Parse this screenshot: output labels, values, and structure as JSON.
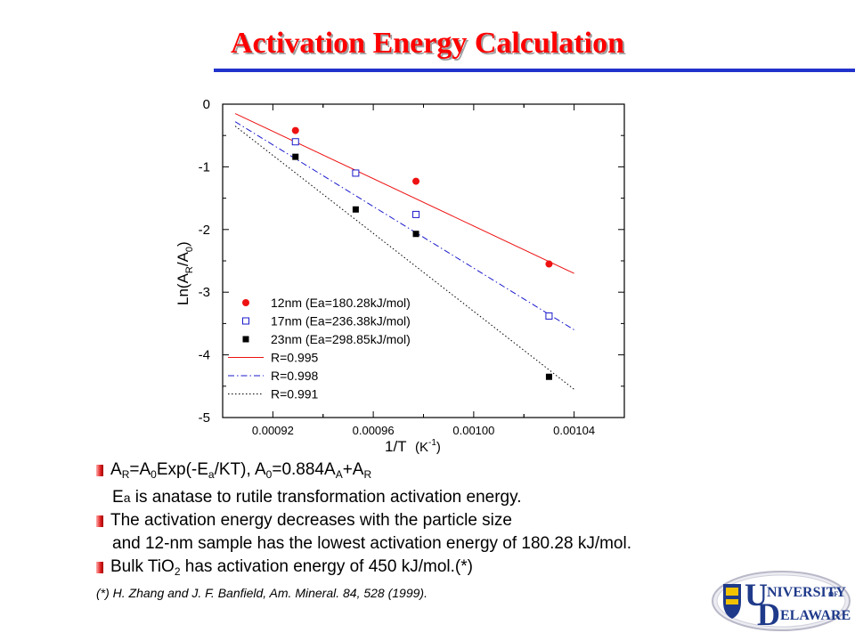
{
  "title": "Activation Energy Calculation",
  "chart_data": {
    "type": "scatter",
    "xlabel_main": "1/T",
    "xlabel_unit_open": "(K",
    "xlabel_unit_exp": "-1",
    "xlabel_unit_close": ")",
    "ylabel_parts": [
      "Ln(A",
      "R",
      "/A",
      "0",
      ")"
    ],
    "xlim": [
      0.0009,
      0.00106
    ],
    "ylim": [
      -5,
      0
    ],
    "x_ticks": [
      0.00092,
      0.00096,
      0.001,
      0.00104
    ],
    "x_tick_labels": [
      "0.00092",
      "0.00096",
      "0.00100",
      "0.00104"
    ],
    "y_ticks": [
      0,
      -1,
      -2,
      -3,
      -4,
      -5
    ],
    "y_tick_labels": [
      "0",
      "-1",
      "-2",
      "-3",
      "-4",
      "-5"
    ],
    "series": [
      {
        "name": "12nm (Ea=180.28kJ/mol)",
        "marker": "filled-circle",
        "color": "#ee1111",
        "x": [
          0.000929,
          0.000977,
          0.00103
        ],
        "y": [
          -0.42,
          -1.23,
          -2.55
        ],
        "fit": {
          "x": [
            0.000905,
            0.00104
          ],
          "y": [
            -0.15,
            -2.7
          ],
          "style": "solid",
          "label": "R=0.995"
        }
      },
      {
        "name": "17nm (Ea=236.38kJ/mol)",
        "marker": "open-square",
        "color": "#1a1acc",
        "x": [
          0.000929,
          0.000953,
          0.000977,
          0.00103
        ],
        "y": [
          -0.6,
          -1.1,
          -1.76,
          -3.38
        ],
        "fit": {
          "x": [
            0.000905,
            0.00104
          ],
          "y": [
            -0.28,
            -3.6
          ],
          "style": "dashdot",
          "label": "R=0.998"
        }
      },
      {
        "name": "23nm (Ea=298.85kJ/mol)",
        "marker": "filled-square",
        "color": "#000000",
        "x": [
          0.000929,
          0.000953,
          0.000977,
          0.00103
        ],
        "y": [
          -0.84,
          -1.68,
          -2.07,
          -4.35
        ],
        "fit": {
          "x": [
            0.000905,
            0.00104
          ],
          "y": [
            -0.35,
            -4.55
          ],
          "style": "dotted",
          "label": "R=0.991"
        }
      }
    ],
    "legend_position": "lower-left"
  },
  "bullets": {
    "b1": {
      "a_r_pre": "A",
      "a_r_sub": "R",
      "eq1": "=A",
      "a0_sub": "0",
      "eq2": "Exp(-E",
      "ea_sub": "a",
      "eq3": "/KT), A",
      "a0b_sub": "0",
      "eq4": "=0.884A",
      "aa_sub": "A",
      "eq5": "+A",
      "ar2_sub": "R"
    },
    "b1_cont": {
      "pre": "E",
      "sub": "a",
      "post": " is anatase to rutile transformation activation energy."
    },
    "b2": "The activation energy decreases with the particle size",
    "b2_cont": "and 12-nm sample has the lowest activation energy of 180.28 kJ/mol.",
    "b3": {
      "pre": "Bulk TiO",
      "sub": "2",
      "post": " has activation energy of 450 kJ/mol.(*)"
    }
  },
  "reference": "(*)  H. Zhang and J. F. Banfield, Am. Mineral. 84, 528 (1999).",
  "logo": {
    "big_u": "U",
    "top_word": "NIVERSITY",
    "of": "OF",
    "big_d": "D",
    "bottom_word": "ELAWARE"
  }
}
